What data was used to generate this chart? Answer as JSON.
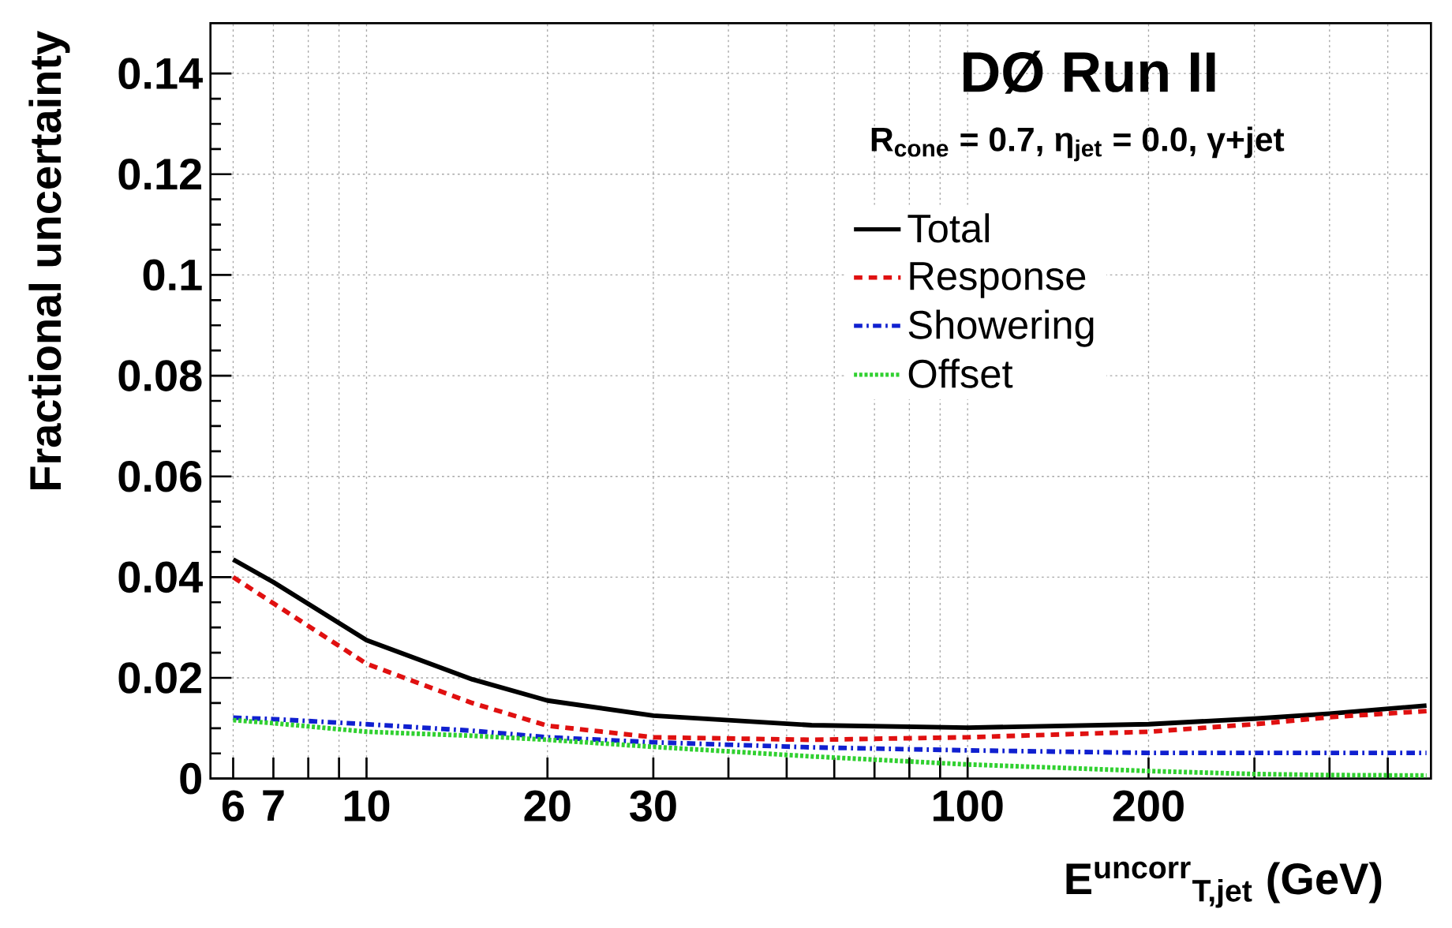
{
  "chart_data": {
    "type": "line",
    "title": "DØ Run II",
    "subtitle": "R$_{cone}$ = 0.7,  η$_{jet}$ = 0.0,  γ+jet",
    "xlabel": "E$^{uncorr}$$_{T,jet}$  (GeV)",
    "ylabel": "Fractional uncertainty",
    "x": [
      6,
      7,
      10,
      15,
      20,
      30,
      55,
      100,
      200,
      300,
      400,
      580
    ],
    "series": [
      {
        "name": "Total",
        "color": "#000000",
        "line_style": "solid",
        "values": [
          0.0435,
          0.039,
          0.0275,
          0.0197,
          0.0155,
          0.0125,
          0.0106,
          0.0101,
          0.0108,
          0.0119,
          0.0129,
          0.0145
        ]
      },
      {
        "name": "Response",
        "color": "#e01010",
        "line_style": "dashed",
        "values": [
          0.04,
          0.0348,
          0.0228,
          0.015,
          0.0105,
          0.0082,
          0.0077,
          0.0082,
          0.0093,
          0.0108,
          0.0122,
          0.0134
        ]
      },
      {
        "name": "Showering",
        "color": "#1020d0",
        "line_style": "dashdot",
        "values": [
          0.0121,
          0.0118,
          0.0108,
          0.0095,
          0.0082,
          0.0072,
          0.0062,
          0.0056,
          0.0051,
          0.0051,
          0.0051,
          0.0051
        ]
      },
      {
        "name": "Offset",
        "color": "#30d030",
        "line_style": "dotted",
        "values": [
          0.0116,
          0.011,
          0.0093,
          0.0085,
          0.0077,
          0.0063,
          0.0044,
          0.0028,
          0.0015,
          0.0009,
          0.0007,
          0.0006
        ]
      }
    ],
    "log": "x",
    "xlim": [
      5.5,
      590
    ],
    "ylim": [
      0,
      0.15
    ],
    "xticks": [
      6,
      7,
      {
        "value": 8,
        "label": null
      },
      {
        "value": 9,
        "label": null
      },
      10,
      20,
      30,
      {
        "value": 40,
        "label": null
      },
      {
        "value": 50,
        "label": null
      },
      {
        "value": 60,
        "label": null
      },
      {
        "value": 70,
        "label": null
      },
      {
        "value": 80,
        "label": null
      },
      {
        "value": 90,
        "label": null
      },
      100,
      200,
      {
        "value": 300,
        "label": null
      },
      {
        "value": 400,
        "label": null
      },
      {
        "value": 500,
        "label": null
      }
    ],
    "yticks": [
      0,
      0.02,
      0.04,
      0.06,
      0.08,
      0.1,
      0.12,
      0.14
    ],
    "grid": true,
    "legend": "top right",
    "marker": "none"
  }
}
